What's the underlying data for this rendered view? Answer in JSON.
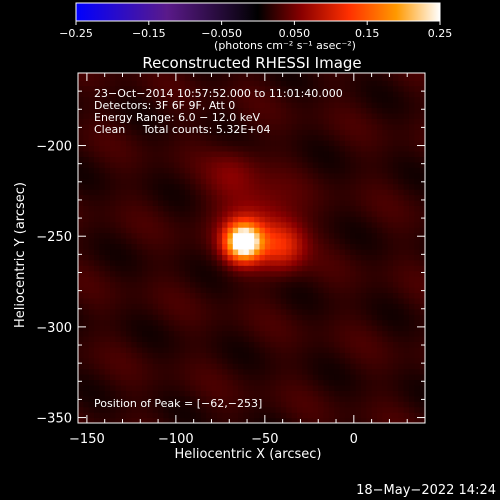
{
  "chart_data": {
    "type": "heatmap",
    "title": "Reconstructed RHESSI Image",
    "xlabel": "Heliocentric X (arcsec)",
    "ylabel": "Heliocentric Y (arcsec)",
    "xlim": [
      -155,
      40
    ],
    "ylim": [
      -353,
      -160
    ],
    "xticks": [
      -150,
      -100,
      -50,
      0
    ],
    "xtick_labels": [
      "−150",
      "−100",
      "−50",
      "0"
    ],
    "yticks": [
      -200,
      -250,
      -300,
      -350
    ],
    "ytick_labels": [
      "−200",
      "−250",
      "−300",
      "−350"
    ],
    "colorbar": {
      "min": -0.25,
      "max": 0.25,
      "ticks": [
        -0.25,
        -0.15,
        -0.05,
        0.05,
        0.15,
        0.25
      ],
      "tick_labels": [
        "−0.25",
        "−0.15",
        "−0.050",
        "0.050",
        "0.15",
        "0.25"
      ],
      "unit_label": "(photons cm⁻² s⁻¹ asec⁻²)",
      "colors": [
        "#0000ff",
        "#5a1a8a",
        "#000000",
        "#8a0000",
        "#ff3000",
        "#ff9900",
        "#ffffff"
      ]
    },
    "annotations": [
      "23−Oct−2014 10:57:52.000 to 11:01:40.000",
      "Detectors: 3F 6F 9F, Att 0",
      "Energy Range: 6.0 − 12.0 keV",
      "Clean     Total counts: 5.32E+04"
    ],
    "peak_label": "Position of Peak = [−62,−253]",
    "peak": {
      "x": -62,
      "y": -253
    },
    "sources": [
      {
        "x": -62,
        "y": -253,
        "value": 0.25,
        "sigma": 7
      },
      {
        "x": -40,
        "y": -255,
        "value": 0.08,
        "sigma": 9
      },
      {
        "x": -55,
        "y": -243,
        "value": 0.06,
        "sigma": 14
      },
      {
        "x": -68,
        "y": -215,
        "value": 0.03,
        "sigma": 10
      }
    ]
  },
  "footer": {
    "timestamp": "18−May−2022 14:24"
  }
}
